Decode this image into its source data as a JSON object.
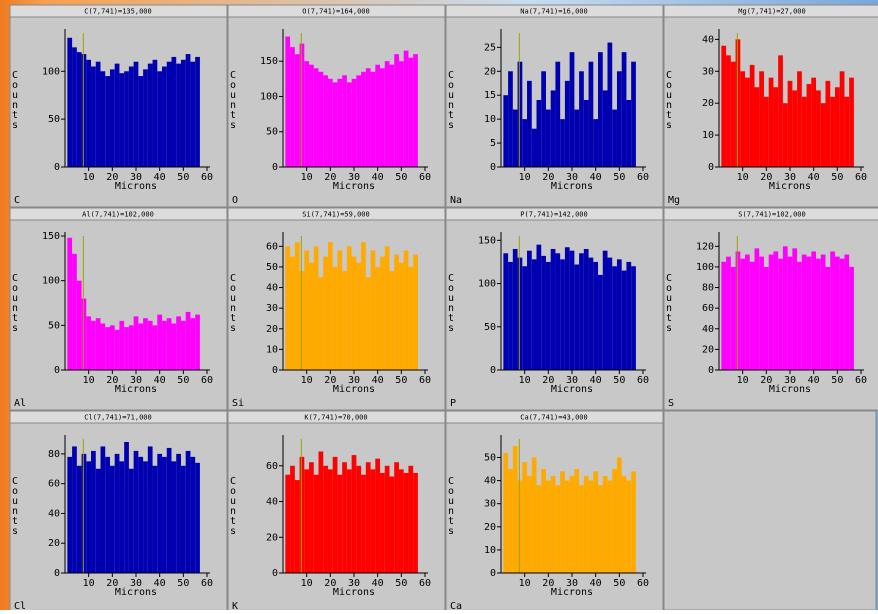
{
  "chart_data": [
    {
      "type": "histogram",
      "title": "C(7,741)=135,000",
      "ylabel": "Counts",
      "xlabel": "Microns",
      "label": "C",
      "color": "#0000b0",
      "label_color": "#0000ff",
      "cursor_x": 7.741,
      "bins": [
        1,
        3,
        5,
        7,
        9,
        11,
        13,
        15,
        17,
        19,
        21,
        23,
        25,
        27,
        29,
        31,
        33,
        35,
        37,
        39,
        41,
        43,
        45,
        47,
        49,
        51,
        53,
        55,
        57
      ],
      "values": [
        135,
        125,
        120,
        118,
        112,
        105,
        110,
        100,
        95,
        102,
        108,
        98,
        100,
        105,
        110,
        95,
        102,
        108,
        112,
        100,
        105,
        110,
        115,
        108,
        112,
        118,
        110,
        115
      ],
      "xlim": [
        0,
        60
      ],
      "ylim": [
        0,
        140
      ],
      "xticks": [
        10,
        20,
        30,
        40,
        50,
        60
      ],
      "yticks": [
        0,
        50,
        100
      ]
    },
    {
      "type": "histogram",
      "title": "O(7,741)=164,000",
      "ylabel": "Counts",
      "xlabel": "Microns",
      "label": "O",
      "color": "#ff00ff",
      "label_color": "#ff00ff",
      "cursor_x": 7.741,
      "bins": [
        1,
        3,
        5,
        7,
        9,
        11,
        13,
        15,
        17,
        19,
        21,
        23,
        25,
        27,
        29,
        31,
        33,
        35,
        37,
        39,
        41,
        43,
        45,
        47,
        49,
        51,
        53,
        55,
        57
      ],
      "values": [
        185,
        170,
        160,
        175,
        150,
        145,
        140,
        135,
        130,
        125,
        120,
        125,
        130,
        120,
        125,
        130,
        135,
        140,
        135,
        145,
        140,
        150,
        145,
        160,
        150,
        165,
        155,
        160
      ],
      "xlim": [
        0,
        60
      ],
      "ylim": [
        0,
        190
      ],
      "xticks": [
        10,
        20,
        30,
        40,
        50,
        60
      ],
      "yticks": [
        0,
        50,
        100,
        150
      ]
    },
    {
      "type": "histogram",
      "title": "Na(7,741)=16,000",
      "ylabel": "Counts",
      "xlabel": "Microns",
      "label": "Na",
      "color": "#0000b0",
      "label_color": "#0000ff",
      "cursor_x": 7.741,
      "bins": [
        1,
        3,
        5,
        7,
        9,
        11,
        13,
        15,
        17,
        19,
        21,
        23,
        25,
        27,
        29,
        31,
        33,
        35,
        37,
        39,
        41,
        43,
        45,
        47,
        49,
        51,
        53,
        55,
        57
      ],
      "values": [
        15,
        20,
        12,
        22,
        10,
        18,
        8,
        14,
        20,
        12,
        16,
        22,
        10,
        18,
        24,
        12,
        20,
        14,
        22,
        10,
        24,
        16,
        26,
        12,
        20,
        24,
        14,
        22
      ],
      "xlim": [
        0,
        60
      ],
      "ylim": [
        0,
        28
      ],
      "xticks": [
        10,
        20,
        30,
        40,
        50,
        60
      ],
      "yticks": [
        0,
        5,
        10,
        15,
        20,
        25
      ]
    },
    {
      "type": "histogram",
      "title": "Mg(7,741)=27,000",
      "ylabel": "Counts",
      "xlabel": "Microns",
      "label": "Mg",
      "color": "#ff0000",
      "label_color": "#ff0000",
      "cursor_x": 7.741,
      "bins": [
        1,
        3,
        5,
        7,
        9,
        11,
        13,
        15,
        17,
        19,
        21,
        23,
        25,
        27,
        29,
        31,
        33,
        35,
        37,
        39,
        41,
        43,
        45,
        47,
        49,
        51,
        53,
        55,
        57
      ],
      "values": [
        38,
        35,
        33,
        40,
        30,
        28,
        32,
        25,
        30,
        22,
        28,
        25,
        35,
        20,
        27,
        24,
        30,
        22,
        26,
        28,
        24,
        20,
        27,
        22,
        25,
        30,
        22,
        28
      ],
      "xlim": [
        0,
        60
      ],
      "ylim": [
        0,
        42
      ],
      "xticks": [
        10,
        20,
        30,
        40,
        50,
        60
      ],
      "yticks": [
        0,
        10,
        20,
        30,
        40
      ]
    },
    {
      "type": "histogram",
      "title": "Al(7,741)=102,000",
      "ylabel": "Counts",
      "xlabel": "Microns",
      "label": "Al",
      "color": "#ff00ff",
      "label_color": "#ff00ff",
      "cursor_x": 7.741,
      "bins": [
        1,
        3,
        5,
        7,
        9,
        11,
        13,
        15,
        17,
        19,
        21,
        23,
        25,
        27,
        29,
        31,
        33,
        35,
        37,
        39,
        41,
        43,
        45,
        47,
        49,
        51,
        53,
        55,
        57
      ],
      "values": [
        148,
        130,
        100,
        80,
        60,
        55,
        58,
        52,
        48,
        50,
        45,
        55,
        48,
        50,
        60,
        52,
        58,
        55,
        50,
        62,
        55,
        58,
        52,
        60,
        55,
        65,
        58,
        62
      ],
      "xlim": [
        0,
        60
      ],
      "ylim": [
        0,
        150
      ],
      "xticks": [
        10,
        20,
        30,
        40,
        50,
        60
      ],
      "yticks": [
        0,
        50,
        100,
        150
      ]
    },
    {
      "type": "histogram",
      "title": "Si(7,741)=59,000",
      "ylabel": "Counts",
      "xlabel": "Microns",
      "label": "Si",
      "color": "#ffaa00",
      "label_color": "#ffaa00",
      "cursor_x": 7.741,
      "bins": [
        1,
        3,
        5,
        7,
        9,
        11,
        13,
        15,
        17,
        19,
        21,
        23,
        25,
        27,
        29,
        31,
        33,
        35,
        37,
        39,
        41,
        43,
        45,
        47,
        49,
        51,
        53,
        55,
        57
      ],
      "values": [
        60,
        55,
        62,
        48,
        58,
        52,
        60,
        45,
        55,
        62,
        50,
        58,
        48,
        60,
        55,
        52,
        62,
        45,
        58,
        50,
        55,
        60,
        48,
        56,
        52,
        58,
        50,
        56
      ],
      "xlim": [
        0,
        60
      ],
      "ylim": [
        0,
        65
      ],
      "xticks": [
        10,
        20,
        30,
        40,
        50,
        60
      ],
      "yticks": [
        0,
        10,
        20,
        30,
        40,
        50,
        60
      ]
    },
    {
      "type": "histogram",
      "title": "P(7,741)=142,000",
      "ylabel": "Counts",
      "xlabel": "Microns",
      "label": "P",
      "color": "#0000b0",
      "label_color": "#0000ff",
      "cursor_x": 7.741,
      "bins": [
        1,
        3,
        5,
        7,
        9,
        11,
        13,
        15,
        17,
        19,
        21,
        23,
        25,
        27,
        29,
        31,
        33,
        35,
        37,
        39,
        41,
        43,
        45,
        47,
        49,
        51,
        53,
        55,
        57
      ],
      "values": [
        135,
        125,
        140,
        130,
        120,
        138,
        128,
        145,
        132,
        125,
        140,
        135,
        128,
        142,
        138,
        122,
        135,
        140,
        130,
        125,
        110,
        138,
        130,
        120,
        128,
        115,
        125,
        120
      ],
      "xlim": [
        0,
        60
      ],
      "ylim": [
        0,
        155
      ],
      "xticks": [
        10,
        20,
        30,
        40,
        50,
        60
      ],
      "yticks": [
        0,
        50,
        100,
        150
      ]
    },
    {
      "type": "histogram",
      "title": "S(7,741)=102,000",
      "ylabel": "Counts",
      "xlabel": "Microns",
      "label": "S",
      "color": "#ff00ff",
      "label_color": "#ff00ff",
      "cursor_x": 7.741,
      "bins": [
        1,
        3,
        5,
        7,
        9,
        11,
        13,
        15,
        17,
        19,
        21,
        23,
        25,
        27,
        29,
        31,
        33,
        35,
        37,
        39,
        41,
        43,
        45,
        47,
        49,
        51,
        53,
        55,
        57
      ],
      "values": [
        105,
        110,
        100,
        115,
        108,
        112,
        105,
        118,
        110,
        100,
        112,
        115,
        108,
        120,
        110,
        118,
        105,
        112,
        110,
        115,
        108,
        112,
        100,
        115,
        110,
        108,
        112,
        100
      ],
      "xlim": [
        0,
        60
      ],
      "ylim": [
        0,
        130
      ],
      "xticks": [
        10,
        20,
        30,
        40,
        50,
        60
      ],
      "yticks": [
        0,
        20,
        40,
        60,
        80,
        100,
        120
      ]
    },
    {
      "type": "histogram",
      "title": "Cl(7,741)=71,000",
      "ylabel": "Counts",
      "xlabel": "Microns",
      "label": "Cl",
      "color": "#0000b0",
      "label_color": "#0000ff",
      "cursor_x": 7.741,
      "bins": [
        1,
        3,
        5,
        7,
        9,
        11,
        13,
        15,
        17,
        19,
        21,
        23,
        25,
        27,
        29,
        31,
        33,
        35,
        37,
        39,
        41,
        43,
        45,
        47,
        49,
        51,
        53,
        55,
        57
      ],
      "values": [
        78,
        85,
        72,
        80,
        75,
        82,
        70,
        85,
        78,
        72,
        80,
        75,
        88,
        70,
        82,
        78,
        75,
        85,
        72,
        80,
        78,
        84,
        75,
        80,
        72,
        82,
        78,
        74
      ],
      "xlim": [
        0,
        60
      ],
      "ylim": [
        0,
        90
      ],
      "xticks": [
        10,
        20,
        30,
        40,
        50,
        60
      ],
      "yticks": [
        0,
        20,
        40,
        60,
        80
      ]
    },
    {
      "type": "histogram",
      "title": "K(7,741)=70,000",
      "ylabel": "Counts",
      "xlabel": "Microns",
      "label": "K",
      "color": "#ff0000",
      "label_color": "#ff0000",
      "cursor_x": 7.741,
      "bins": [
        1,
        3,
        5,
        7,
        9,
        11,
        13,
        15,
        17,
        19,
        21,
        23,
        25,
        27,
        29,
        31,
        33,
        35,
        37,
        39,
        41,
        43,
        45,
        47,
        49,
        51,
        53,
        55,
        57
      ],
      "values": [
        55,
        60,
        52,
        65,
        58,
        62,
        55,
        68,
        60,
        58,
        65,
        55,
        62,
        58,
        66,
        60,
        55,
        62,
        58,
        64,
        56,
        60,
        54,
        62,
        58,
        56,
        60,
        56
      ],
      "xlim": [
        0,
        60
      ],
      "ylim": [
        0,
        75
      ],
      "xticks": [
        10,
        20,
        30,
        40,
        50,
        60
      ],
      "yticks": [
        0,
        20,
        40,
        60
      ]
    },
    {
      "type": "histogram",
      "title": "Ca(7,741)=43,000",
      "ylabel": "Counts",
      "xlabel": "Microns",
      "label": "Ca",
      "color": "#ffaa00",
      "label_color": "#ffaa00",
      "cursor_x": 7.741,
      "bins": [
        1,
        3,
        5,
        7,
        9,
        11,
        13,
        15,
        17,
        19,
        21,
        23,
        25,
        27,
        29,
        31,
        33,
        35,
        37,
        39,
        41,
        43,
        45,
        47,
        49,
        51,
        53,
        55,
        57
      ],
      "values": [
        52,
        45,
        55,
        40,
        48,
        42,
        50,
        38,
        45,
        40,
        42,
        38,
        44,
        40,
        42,
        45,
        38,
        42,
        40,
        44,
        38,
        42,
        40,
        45,
        50,
        42,
        40,
        44
      ],
      "xlim": [
        0,
        60
      ],
      "ylim": [
        0,
        58
      ],
      "xticks": [
        10,
        20,
        30,
        40,
        50,
        60
      ],
      "yticks": [
        0,
        10,
        20,
        30,
        40,
        50
      ]
    }
  ]
}
